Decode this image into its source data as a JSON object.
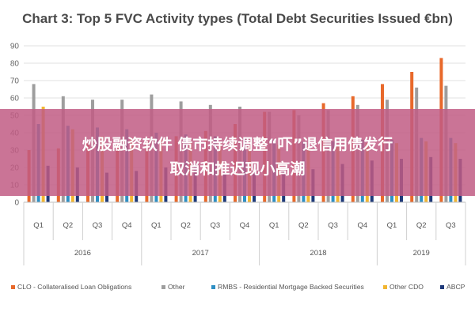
{
  "chart_data": {
    "type": "bar",
    "title": "Chart 3: Top 5 FVC Activity types (Total Debt Securities Issued €bn)",
    "quarters": [
      "Q1",
      "Q2",
      "Q3",
      "Q4",
      "Q1",
      "Q2",
      "Q3",
      "Q4",
      "Q1",
      "Q2",
      "Q3",
      "Q4",
      "Q1",
      "Q2",
      "Q3"
    ],
    "years": [
      {
        "label": "2016",
        "count": 4
      },
      {
        "label": "2017",
        "count": 4
      },
      {
        "label": "2018",
        "count": 4
      },
      {
        "label": "2019",
        "count": 3
      }
    ],
    "ylim": [
      0,
      90
    ],
    "yticks": [
      0,
      10,
      20,
      30,
      40,
      50,
      60,
      70,
      80,
      90
    ],
    "grid": true,
    "legend_position": "bottom",
    "series": [
      {
        "name": "CLO - Collateralised Loan Obligations",
        "color": "#E8692B",
        "values": [
          30,
          31,
          34,
          34,
          37,
          38,
          41,
          45,
          52,
          53,
          57,
          61,
          68,
          75,
          83
        ]
      },
      {
        "name": "Other",
        "color": "#9E9E9E",
        "values": [
          68,
          61,
          59,
          59,
          62,
          58,
          56,
          55,
          52,
          50,
          53,
          56,
          59,
          66,
          67
        ]
      },
      {
        "name": "RMBS - Residential Mortgage Backed Securities",
        "color": "#2E8FC4",
        "values": [
          45,
          44,
          43,
          42,
          40,
          39,
          38,
          37,
          36,
          35,
          35,
          36,
          36,
          37,
          37
        ]
      },
      {
        "name": "Other CDO",
        "color": "#F2B632",
        "values": [
          55,
          42,
          38,
          37,
          36,
          35,
          34,
          33,
          33,
          32,
          33,
          34,
          34,
          35,
          34
        ]
      },
      {
        "name": "ABCP",
        "color": "#1F3A7A",
        "values": [
          21,
          20,
          17,
          18,
          20,
          22,
          17,
          18,
          18,
          19,
          22,
          24,
          25,
          26,
          25
        ]
      }
    ]
  },
  "banner": {
    "line1": "炒股融资软件 债市持续调整“吓”退信用债发行",
    "line2": "取消和推迟现小高潮",
    "color": "#C15C84"
  }
}
